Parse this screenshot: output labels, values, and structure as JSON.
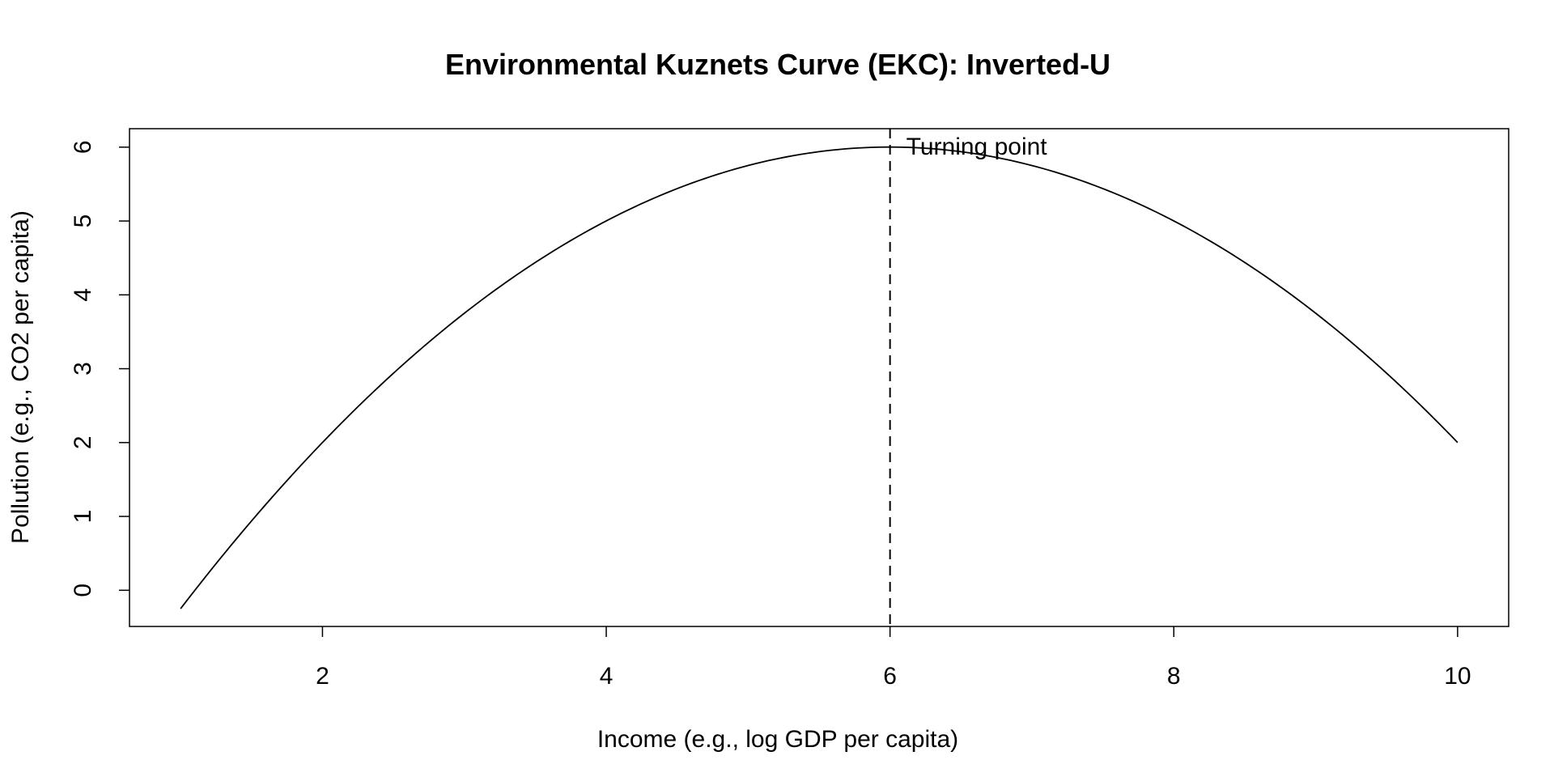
{
  "chart_data": {
    "type": "line",
    "title": "Environmental Kuznets Curve (EKC): Inverted-U",
    "xlabel": "Income (e.g., log GDP per capita)",
    "ylabel": "Pollution (e.g., CO2 per capita)",
    "xlim": [
      0.64,
      10.36
    ],
    "ylim": [
      -0.49,
      6.25
    ],
    "xticks": [
      2,
      4,
      6,
      8,
      10
    ],
    "yticks": [
      0,
      1,
      2,
      3,
      4,
      5,
      6
    ],
    "grid": false,
    "legend": "none",
    "series": [
      {
        "x": [
          1,
          1.5,
          2,
          2.5,
          3,
          3.5,
          4,
          4.5,
          5,
          5.5,
          6,
          6.5,
          7,
          7.5,
          8,
          8.5,
          9,
          9.5,
          10
        ],
        "values": [
          -0.25,
          0.94,
          2.0,
          2.94,
          3.75,
          4.44,
          5.0,
          5.44,
          5.75,
          5.94,
          6.0,
          5.94,
          5.75,
          5.44,
          5.0,
          4.44,
          3.75,
          2.94,
          2.0
        ],
        "color": "#000000"
      }
    ],
    "reference_lines": [
      {
        "orientation": "vertical",
        "x": 6,
        "style": "dashed",
        "color": "#000000"
      }
    ],
    "annotations": [
      {
        "text": "Turning point",
        "x": 6,
        "y": 6
      }
    ]
  }
}
